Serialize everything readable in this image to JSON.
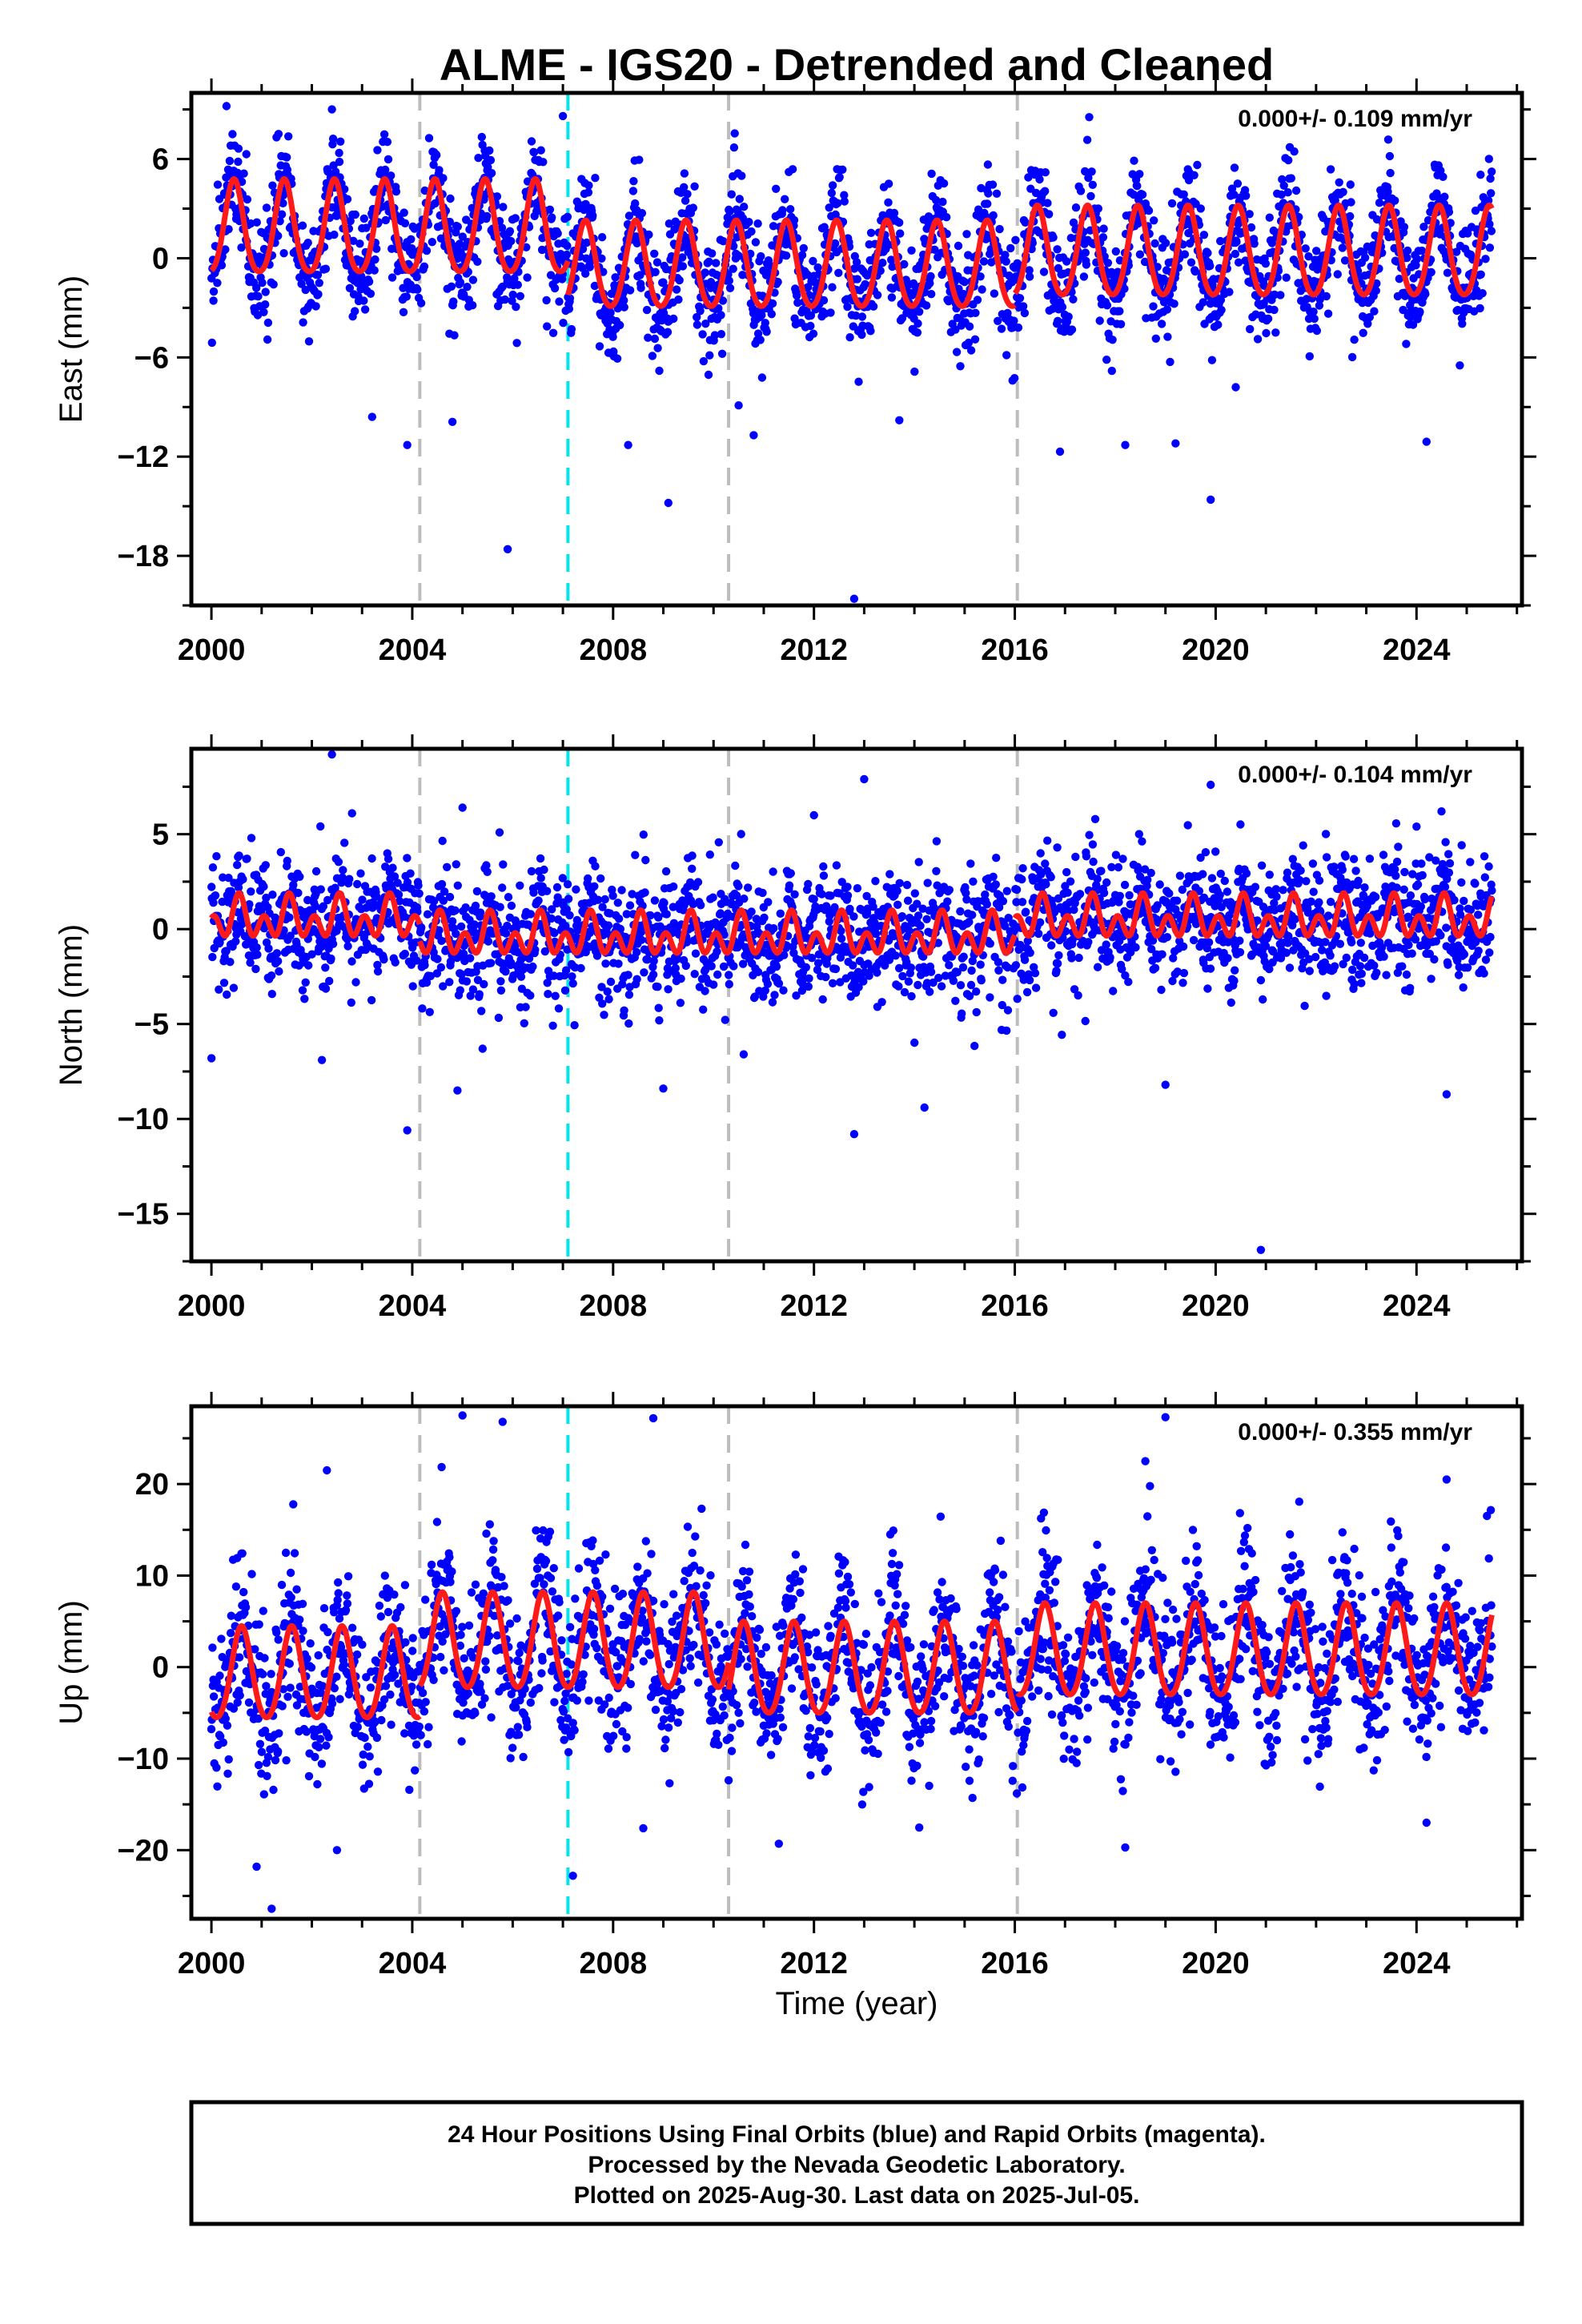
{
  "title": "ALME - IGS20 - Detrended and Cleaned",
  "x_axis_label": "Time (year)",
  "footer": {
    "lines": [
      "24 Hour Positions Using Final Orbits (blue) and Rapid Orbits (magenta).",
      "Processed by the Nevada Geodetic Laboratory.",
      "Plotted on 2025-Aug-30. Last data on 2025-Jul-05."
    ]
  },
  "colors": {
    "data_points": "#0000ff",
    "model_fit": "#ff1a1a",
    "step_gray": "#bdbdbd",
    "step_cyan": "#00e5ee",
    "frame": "#000000"
  },
  "chart_data": [
    {
      "type": "scatter",
      "panel": "east",
      "ylabel": "East (mm)",
      "rate_text": "0.000+/- 0.109 mm/yr",
      "xlim": [
        1999.6,
        2026.1
      ],
      "ylim": [
        -21,
        10
      ],
      "xticks": [
        "2000",
        "2004",
        "2008",
        "2012",
        "2016",
        "2020",
        "2024"
      ],
      "yticks": [
        "6",
        "0",
        "−6",
        "−12",
        "−18"
      ],
      "ytick_values": [
        6,
        0,
        -6,
        -12,
        -18
      ],
      "grid": false,
      "series": [
        {
          "kind": "scatter",
          "color": "#0000ff",
          "seasonal": {
            "segments": [
              {
                "start": 2000.0,
                "end": 2007.1,
                "offset": 1.5,
                "annual_amp": 2.8,
                "semi_amp": 0.4
              },
              {
                "start": 2007.1,
                "end": 2016.0,
                "offset": -0.6,
                "annual_amp": 2.6,
                "semi_amp": 0.3
              },
              {
                "start": 2016.0,
                "end": 2025.5,
                "offset": 0.2,
                "annual_amp": 2.7,
                "semi_amp": 0.3
              }
            ],
            "annual_phase_peak": 0.45,
            "noise_sd": 1.7
          },
          "outliers": [
            {
              "x": 2003.9,
              "y": -11.3
            },
            {
              "x": 2003.2,
              "y": -9.6
            },
            {
              "x": 2004.8,
              "y": -9.9
            },
            {
              "x": 2005.9,
              "y": -17.6
            },
            {
              "x": 2008.3,
              "y": -11.3
            },
            {
              "x": 2009.1,
              "y": -14.8
            },
            {
              "x": 2010.5,
              "y": -8.9
            },
            {
              "x": 2010.8,
              "y": -10.7
            },
            {
              "x": 2012.8,
              "y": -20.6
            },
            {
              "x": 2013.7,
              "y": -9.8
            },
            {
              "x": 2016.9,
              "y": -11.7
            },
            {
              "x": 2018.2,
              "y": -11.3
            },
            {
              "x": 2019.2,
              "y": -11.2
            },
            {
              "x": 2019.9,
              "y": -14.6
            },
            {
              "x": 2020.4,
              "y": -7.8
            },
            {
              "x": 2024.2,
              "y": -11.1
            },
            {
              "x": 2002.4,
              "y": 9.0
            },
            {
              "x": 2000.3,
              "y": 9.2
            },
            {
              "x": 2007.0,
              "y": 8.6
            }
          ]
        },
        {
          "kind": "line",
          "color": "#ff1a1a",
          "model": {
            "segments": [
              {
                "start": 2000.0,
                "end": 2007.1,
                "offset": 1.6,
                "annual_amp": 2.8,
                "semi_amp": 0.4
              },
              {
                "start": 2007.1,
                "end": 2016.0,
                "offset": -0.6,
                "annual_amp": 2.6,
                "semi_amp": 0.3
              },
              {
                "start": 2016.0,
                "end": 2025.5,
                "offset": 0.2,
                "annual_amp": 2.7,
                "semi_amp": 0.3
              }
            ],
            "annual_phase_peak": 0.45
          }
        }
      ],
      "steps": [
        {
          "x": 2004.15,
          "color": "gray"
        },
        {
          "x": 2007.1,
          "color": "cyan"
        },
        {
          "x": 2010.3,
          "color": "gray"
        },
        {
          "x": 2016.05,
          "color": "gray"
        }
      ]
    },
    {
      "type": "scatter",
      "panel": "north",
      "ylabel": "North (mm)",
      "rate_text": "0.000+/- 0.104 mm/yr",
      "xlim": [
        1999.6,
        2026.1
      ],
      "ylim": [
        -17.5,
        9.5
      ],
      "xticks": [
        "2000",
        "2004",
        "2008",
        "2012",
        "2016",
        "2020",
        "2024"
      ],
      "yticks": [
        "5",
        "0",
        "−5",
        "−10",
        "−15"
      ],
      "ytick_values": [
        5,
        0,
        -5,
        -10,
        -15
      ],
      "grid": false,
      "series": [
        {
          "kind": "scatter",
          "color": "#0000ff",
          "seasonal": {
            "segments": [
              {
                "start": 2000.0,
                "end": 2004.15,
                "offset": 0.5,
                "annual_amp": 0.6,
                "semi_amp": 0.8
              },
              {
                "start": 2004.15,
                "end": 2016.0,
                "offset": -0.4,
                "annual_amp": 0.6,
                "semi_amp": 0.8
              },
              {
                "start": 2016.0,
                "end": 2025.5,
                "offset": 0.5,
                "annual_amp": 0.6,
                "semi_amp": 0.8
              }
            ],
            "annual_phase_peak": 0.55,
            "noise_sd": 1.6
          },
          "outliers": [
            {
              "x": 2002.4,
              "y": 9.2
            },
            {
              "x": 2002.8,
              "y": 6.1
            },
            {
              "x": 2005.0,
              "y": 6.4
            },
            {
              "x": 2013.0,
              "y": 7.9
            },
            {
              "x": 2012.0,
              "y": 6.0
            },
            {
              "x": 2019.9,
              "y": 7.6
            },
            {
              "x": 2024.0,
              "y": 5.4
            },
            {
              "x": 2000.0,
              "y": -6.8
            },
            {
              "x": 2002.2,
              "y": -6.9
            },
            {
              "x": 2003.9,
              "y": -10.6
            },
            {
              "x": 2004.9,
              "y": -8.5
            },
            {
              "x": 2009.0,
              "y": -8.4
            },
            {
              "x": 2012.8,
              "y": -10.8
            },
            {
              "x": 2014.2,
              "y": -9.4
            },
            {
              "x": 2019.0,
              "y": -8.2
            },
            {
              "x": 2020.9,
              "y": -16.9
            },
            {
              "x": 2024.6,
              "y": -8.7
            },
            {
              "x": 2010.6,
              "y": -6.6
            },
            {
              "x": 2005.4,
              "y": -6.3
            }
          ]
        },
        {
          "kind": "line",
          "color": "#ff1a1a",
          "model": {
            "segments": [
              {
                "start": 2000.0,
                "end": 2004.15,
                "offset": 0.5,
                "annual_amp": 0.6,
                "semi_amp": 0.8
              },
              {
                "start": 2004.15,
                "end": 2016.0,
                "offset": -0.4,
                "annual_amp": 0.6,
                "semi_amp": 0.8
              },
              {
                "start": 2016.0,
                "end": 2025.5,
                "offset": 0.5,
                "annual_amp": 0.6,
                "semi_amp": 0.8
              }
            ],
            "annual_phase_peak": 0.55
          }
        }
      ],
      "steps": [
        {
          "x": 2004.15,
          "color": "gray"
        },
        {
          "x": 2007.1,
          "color": "cyan"
        },
        {
          "x": 2010.3,
          "color": "gray"
        },
        {
          "x": 2016.05,
          "color": "gray"
        }
      ]
    },
    {
      "type": "scatter",
      "panel": "up",
      "ylabel": "Up (mm)",
      "rate_text": "0.000+/- 0.355 mm/yr",
      "xlim": [
        1999.6,
        2026.1
      ],
      "ylim": [
        -27.5,
        28.5
      ],
      "xticks": [
        "2000",
        "2004",
        "2008",
        "2012",
        "2016",
        "2020",
        "2024"
      ],
      "yticks": [
        "20",
        "10",
        "0",
        "−10",
        "−20"
      ],
      "ytick_values": [
        20,
        10,
        0,
        -10,
        -20
      ],
      "grid": false,
      "series": [
        {
          "kind": "scatter",
          "color": "#0000ff",
          "seasonal": {
            "segments": [
              {
                "start": 2000.0,
                "end": 2004.15,
                "offset": -1.0,
                "annual_amp": 5.0,
                "semi_amp": 0.5
              },
              {
                "start": 2004.15,
                "end": 2010.3,
                "offset": 2.5,
                "annual_amp": 5.2,
                "semi_amp": 0.5
              },
              {
                "start": 2010.3,
                "end": 2016.05,
                "offset": -0.5,
                "annual_amp": 5.0,
                "semi_amp": 0.5
              },
              {
                "start": 2016.05,
                "end": 2025.5,
                "offset": 1.5,
                "annual_amp": 5.0,
                "semi_amp": 0.5
              }
            ],
            "annual_phase_peak": 0.6,
            "noise_sd": 4.2
          },
          "outliers": [
            {
              "x": 2005.0,
              "y": 27.5
            },
            {
              "x": 2005.8,
              "y": 26.8
            },
            {
              "x": 2008.8,
              "y": 27.2
            },
            {
              "x": 2019.0,
              "y": 27.3
            },
            {
              "x": 2002.3,
              "y": 21.5
            },
            {
              "x": 2018.6,
              "y": 22.5
            },
            {
              "x": 2024.6,
              "y": 20.5
            },
            {
              "x": 2000.9,
              "y": -21.8
            },
            {
              "x": 2001.2,
              "y": -26.4
            },
            {
              "x": 2002.5,
              "y": -20.0
            },
            {
              "x": 2007.2,
              "y": -22.8
            },
            {
              "x": 2018.2,
              "y": -19.7
            },
            {
              "x": 2008.6,
              "y": -17.6
            },
            {
              "x": 2011.3,
              "y": -19.3
            },
            {
              "x": 2024.2,
              "y": -17.0
            }
          ]
        },
        {
          "kind": "line",
          "color": "#ff1a1a",
          "model": {
            "segments": [
              {
                "start": 2000.0,
                "end": 2004.15,
                "offset": -1.0,
                "annual_amp": 5.0,
                "semi_amp": 0.5
              },
              {
                "start": 2004.15,
                "end": 2010.3,
                "offset": 2.5,
                "annual_amp": 5.2,
                "semi_amp": 0.5
              },
              {
                "start": 2010.3,
                "end": 2016.05,
                "offset": -0.5,
                "annual_amp": 5.0,
                "semi_amp": 0.5
              },
              {
                "start": 2016.05,
                "end": 2025.5,
                "offset": 1.5,
                "annual_amp": 5.0,
                "semi_amp": 0.5
              }
            ],
            "annual_phase_peak": 0.6
          }
        }
      ],
      "steps": [
        {
          "x": 2004.15,
          "color": "gray"
        },
        {
          "x": 2007.1,
          "color": "cyan"
        },
        {
          "x": 2010.3,
          "color": "gray"
        },
        {
          "x": 2016.05,
          "color": "gray"
        }
      ]
    }
  ]
}
